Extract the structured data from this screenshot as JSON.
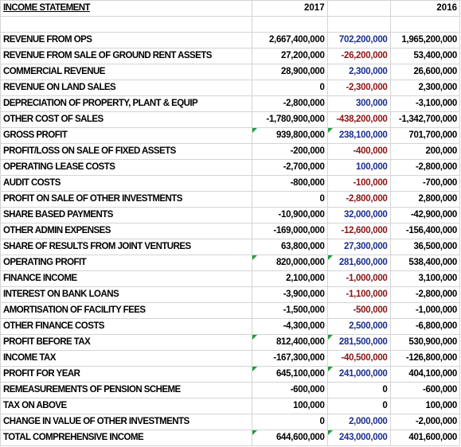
{
  "sheet": {
    "title": "INCOME STATEMENT",
    "col_2017": "2017",
    "col_2016": "2016",
    "colors": {
      "positive_delta": "#1a2e8c",
      "negative_delta": "#8b1414",
      "comment_flag": "#1f9d3a"
    },
    "rows": [
      {
        "label": "REVENUE FROM OPS",
        "y2017": "2,667,400,000",
        "delta": "702,200,000",
        "dsign": "pos",
        "y2016": "1,965,200,000"
      },
      {
        "label": "REVENUE FROM SALE OF GROUND RENT ASSETS",
        "y2017": "27,200,000",
        "delta": "-26,200,000",
        "dsign": "neg",
        "y2016": "53,400,000"
      },
      {
        "label": "COMMERCIAL REVENUE",
        "y2017": "28,900,000",
        "delta": "2,300,000",
        "dsign": "pos",
        "y2016": "26,600,000"
      },
      {
        "label": "REVENUE ON LAND SALES",
        "y2017": "0",
        "delta": "-2,300,000",
        "dsign": "neg",
        "y2016": "2,300,000"
      },
      {
        "label": "DEPRECIATION OF PROPERTY, PLANT & EQUIP",
        "y2017": "-2,800,000",
        "delta": "300,000",
        "dsign": "pos",
        "y2016": "-3,100,000"
      },
      {
        "label": "OTHER COST OF SALES",
        "y2017": "-1,780,900,000",
        "delta": "-438,200,000",
        "dsign": "neg",
        "y2016": "-1,342,700,000"
      },
      {
        "label": "GROSS PROFIT",
        "y2017": "939,800,000",
        "delta": "238,100,000",
        "dsign": "pos",
        "y2016": "701,700,000",
        "flag": true
      },
      {
        "label": "PROFIT/LOSS ON SALE OF FIXED ASSETS",
        "y2017": "-200,000",
        "delta": "-400,000",
        "dsign": "neg",
        "y2016": "200,000"
      },
      {
        "label": "OPERATING LEASE COSTS",
        "y2017": "-2,700,000",
        "delta": "100,000",
        "dsign": "pos",
        "y2016": "-2,800,000"
      },
      {
        "label": "AUDIT COSTS",
        "y2017": "-800,000",
        "delta": "-100,000",
        "dsign": "neg",
        "y2016": "-700,000"
      },
      {
        "label": "PROFIT ON SALE OF OTHER INVESTMENTS",
        "y2017": "0",
        "delta": "-2,800,000",
        "dsign": "neg",
        "y2016": "2,800,000"
      },
      {
        "label": "SHARE BASED PAYMENTS",
        "y2017": "-10,900,000",
        "delta": "32,000,000",
        "dsign": "pos",
        "y2016": "-42,900,000"
      },
      {
        "label": "OTHER ADMIN EXPENSES",
        "y2017": "-169,000,000",
        "delta": "-12,600,000",
        "dsign": "neg",
        "y2016": "-156,400,000"
      },
      {
        "label": "SHARE OF RESULTS FROM JOINT VENTURES",
        "y2017": "63,800,000",
        "delta": "27,300,000",
        "dsign": "pos",
        "y2016": "36,500,000"
      },
      {
        "label": "OPERATING PROFIT",
        "y2017": "820,000,000",
        "delta": "281,600,000",
        "dsign": "pos",
        "y2016": "538,400,000",
        "flag": true
      },
      {
        "label": "FINANCE INCOME",
        "y2017": "2,100,000",
        "delta": "-1,000,000",
        "dsign": "neg",
        "y2016": "3,100,000"
      },
      {
        "label": "INTEREST ON BANK LOANS",
        "y2017": "-3,900,000",
        "delta": "-1,100,000",
        "dsign": "neg",
        "y2016": "-2,800,000"
      },
      {
        "label": "AMORTISATION OF FACILITY FEES",
        "y2017": "-1,500,000",
        "delta": "-500,000",
        "dsign": "neg",
        "y2016": "-1,000,000"
      },
      {
        "label": "OTHER FINANCE COSTS",
        "y2017": "-4,300,000",
        "delta": "2,500,000",
        "dsign": "pos",
        "y2016": "-6,800,000"
      },
      {
        "label": "PROFIT BEFORE TAX",
        "y2017": "812,400,000",
        "delta": "281,500,000",
        "dsign": "pos",
        "y2016": "530,900,000",
        "flag": true
      },
      {
        "label": "INCOME TAX",
        "y2017": "-167,300,000",
        "delta": "-40,500,000",
        "dsign": "neg",
        "y2016": "-126,800,000"
      },
      {
        "label": "PROFIT FOR YEAR",
        "y2017": "645,100,000",
        "delta": "241,000,000",
        "dsign": "pos",
        "y2016": "404,100,000",
        "flag": true
      },
      {
        "label": "REMEASUREMENTS OF PENSION SCHEME",
        "y2017": "-600,000",
        "delta": "0",
        "dsign": "zero",
        "y2016": "-600,000"
      },
      {
        "label": "TAX ON ABOVE",
        "y2017": "100,000",
        "delta": "0",
        "dsign": "zero",
        "y2016": "100,000"
      },
      {
        "label": "CHANGE IN VALUE OF OTHER INVESTMENTS",
        "y2017": "0",
        "delta": "2,000,000",
        "dsign": "pos",
        "y2016": "-2,000,000"
      },
      {
        "label": "TOTAL COMPREHENSIVE INCOME",
        "y2017": "644,600,000",
        "delta": "243,000,000",
        "dsign": "pos",
        "y2016": "401,600,000",
        "flag": true
      }
    ]
  }
}
